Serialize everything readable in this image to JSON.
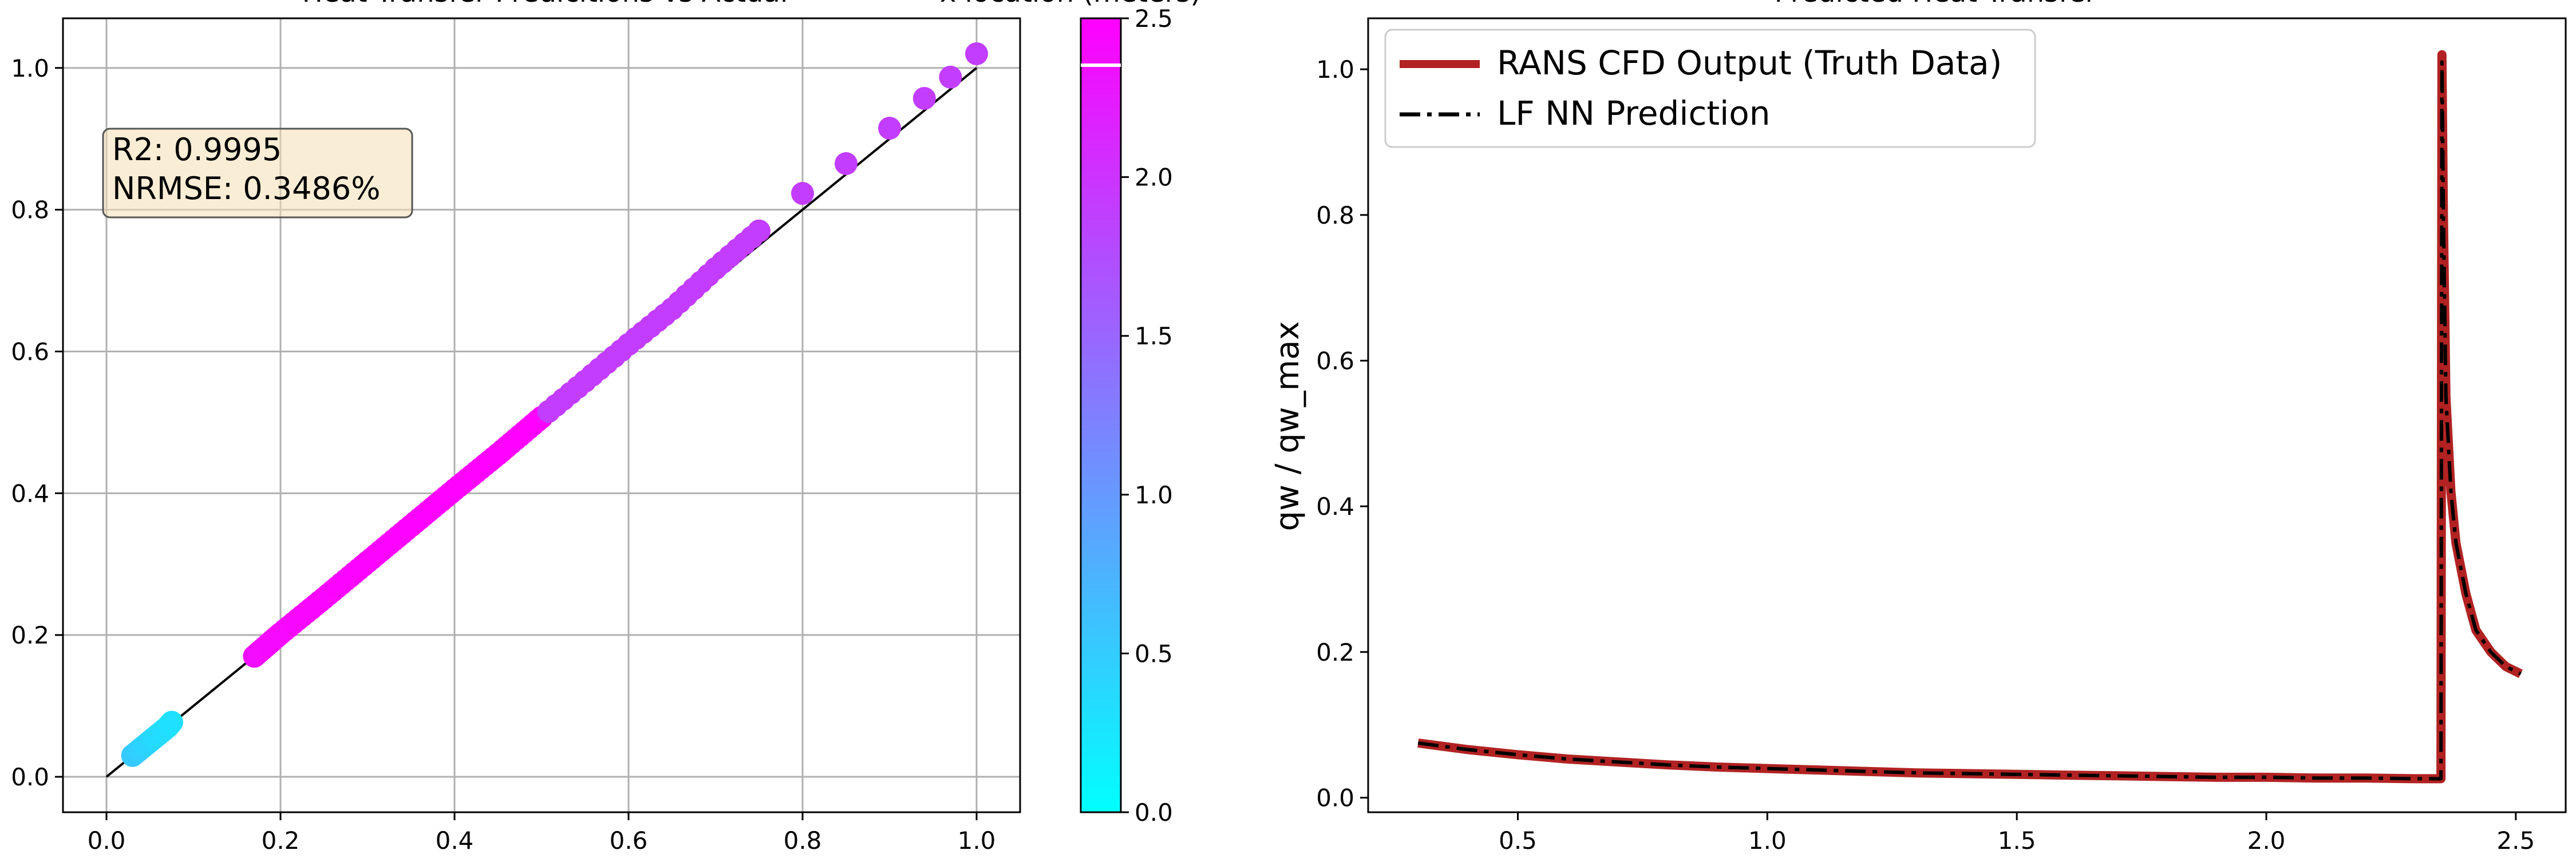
{
  "chart_data": [
    {
      "type": "scatter",
      "title": "Heat Transfer Predicitions vs Actual",
      "xlabel": "",
      "ylabel": "",
      "xlim": [
        -0.05,
        1.05
      ],
      "ylim": [
        -0.05,
        1.07
      ],
      "xticks": [
        0.0,
        0.2,
        0.4,
        0.6,
        0.8,
        1.0
      ],
      "yticks": [
        0.0,
        0.2,
        0.4,
        0.6,
        0.8,
        1.0
      ],
      "xtick_labels": [
        "0.0",
        "0.2",
        "0.4",
        "0.6",
        "0.8",
        "1.0"
      ],
      "ytick_labels": [
        "0.0",
        "0.2",
        "0.4",
        "0.6",
        "0.8",
        "1.0"
      ],
      "grid": true,
      "stats_box": {
        "lines": [
          "R2: 0.9995",
          "NRMSE: 0.3486%"
        ],
        "placement": "upper-left"
      },
      "reference_line": {
        "x": [
          0.0,
          1.0
        ],
        "y": [
          0.0,
          1.0
        ],
        "color": "#000000"
      },
      "colormap": "cool",
      "colorbar": {
        "label": "x location (meters)",
        "range": [
          0.0,
          2.5
        ],
        "ticks": [
          0.0,
          0.5,
          1.0,
          1.5,
          2.0,
          2.5
        ],
        "tick_labels": [
          "0.0",
          "0.5",
          "1.0",
          "1.5",
          "2.0",
          "2.5"
        ]
      },
      "series": [
        {
          "points": [
            {
              "x": 0.03,
              "y": 0.03,
              "c": 0.55
            },
            {
              "x": 0.04,
              "y": 0.04,
              "c": 0.45
            },
            {
              "x": 0.05,
              "y": 0.05,
              "c": 0.4
            },
            {
              "x": 0.06,
              "y": 0.06,
              "c": 0.35
            },
            {
              "x": 0.07,
              "y": 0.07,
              "c": 0.32
            },
            {
              "x": 0.075,
              "y": 0.077,
              "c": 0.3
            },
            {
              "x": 0.17,
              "y": 0.17,
              "c": 2.36
            },
            {
              "x": 0.2,
              "y": 0.202,
              "c": 2.42
            },
            {
              "x": 0.25,
              "y": 0.252,
              "c": 2.45
            },
            {
              "x": 0.3,
              "y": 0.303,
              "c": 2.47
            },
            {
              "x": 0.35,
              "y": 0.354,
              "c": 2.48
            },
            {
              "x": 0.4,
              "y": 0.405,
              "c": 2.49
            },
            {
              "x": 0.45,
              "y": 0.455,
              "c": 2.49
            },
            {
              "x": 0.5,
              "y": 0.507,
              "c": 2.5
            },
            {
              "x": 0.55,
              "y": 0.558,
              "c": 1.9
            },
            {
              "x": 0.6,
              "y": 0.61,
              "c": 1.9
            },
            {
              "x": 0.65,
              "y": 0.66,
              "c": 1.9
            },
            {
              "x": 0.7,
              "y": 0.717,
              "c": 1.9
            },
            {
              "x": 0.75,
              "y": 0.77,
              "c": 1.9
            },
            {
              "x": 0.8,
              "y": 0.823,
              "c": 1.9
            },
            {
              "x": 0.85,
              "y": 0.865,
              "c": 1.9
            },
            {
              "x": 0.9,
              "y": 0.915,
              "c": 1.9
            },
            {
              "x": 0.94,
              "y": 0.957,
              "c": 1.9
            },
            {
              "x": 0.97,
              "y": 0.987,
              "c": 1.9
            },
            {
              "x": 1.0,
              "y": 1.02,
              "c": 1.9
            }
          ]
        }
      ]
    },
    {
      "type": "line",
      "title": "Predicted Heat Transfer",
      "xlabel": "",
      "ylabel": "qw / qw_max",
      "xlim": [
        0.2,
        2.6
      ],
      "ylim": [
        -0.02,
        1.07
      ],
      "xticks": [
        0.5,
        1.0,
        1.5,
        2.0,
        2.5
      ],
      "yticks": [
        0.0,
        0.2,
        0.4,
        0.6,
        0.8,
        1.0
      ],
      "xtick_labels": [
        "0.5",
        "1.0",
        "1.5",
        "2.0",
        "2.5"
      ],
      "ytick_labels": [
        "0.0",
        "0.2",
        "0.4",
        "0.6",
        "0.8",
        "1.0"
      ],
      "grid": false,
      "legend_placement": "upper-left",
      "x": [
        0.3,
        0.4,
        0.5,
        0.6,
        0.7,
        0.8,
        0.9,
        1.0,
        1.1,
        1.2,
        1.3,
        1.4,
        1.5,
        1.6,
        1.7,
        1.8,
        1.9,
        2.0,
        2.1,
        2.2,
        2.3,
        2.35,
        2.352,
        2.355,
        2.36,
        2.37,
        2.38,
        2.4,
        2.42,
        2.45,
        2.48,
        2.51
      ],
      "series": [
        {
          "name": "RANS CFD Output (Truth Data)",
          "color": "#b22222",
          "style": "solid",
          "values": [
            0.075,
            0.066,
            0.059,
            0.053,
            0.049,
            0.045,
            0.042,
            0.04,
            0.038,
            0.036,
            0.034,
            0.033,
            0.032,
            0.031,
            0.03,
            0.029,
            0.028,
            0.028,
            0.027,
            0.027,
            0.026,
            0.026,
            1.02,
            0.8,
            0.55,
            0.42,
            0.35,
            0.28,
            0.23,
            0.2,
            0.18,
            0.17
          ]
        },
        {
          "name": "LF NN Prediction",
          "color": "#000000",
          "style": "dashdot",
          "values": [
            0.075,
            0.066,
            0.059,
            0.053,
            0.049,
            0.045,
            0.042,
            0.04,
            0.038,
            0.036,
            0.034,
            0.033,
            0.032,
            0.031,
            0.03,
            0.029,
            0.028,
            0.028,
            0.027,
            0.027,
            0.026,
            0.026,
            1.01,
            0.8,
            0.55,
            0.42,
            0.35,
            0.28,
            0.23,
            0.2,
            0.18,
            0.17
          ]
        }
      ]
    }
  ]
}
